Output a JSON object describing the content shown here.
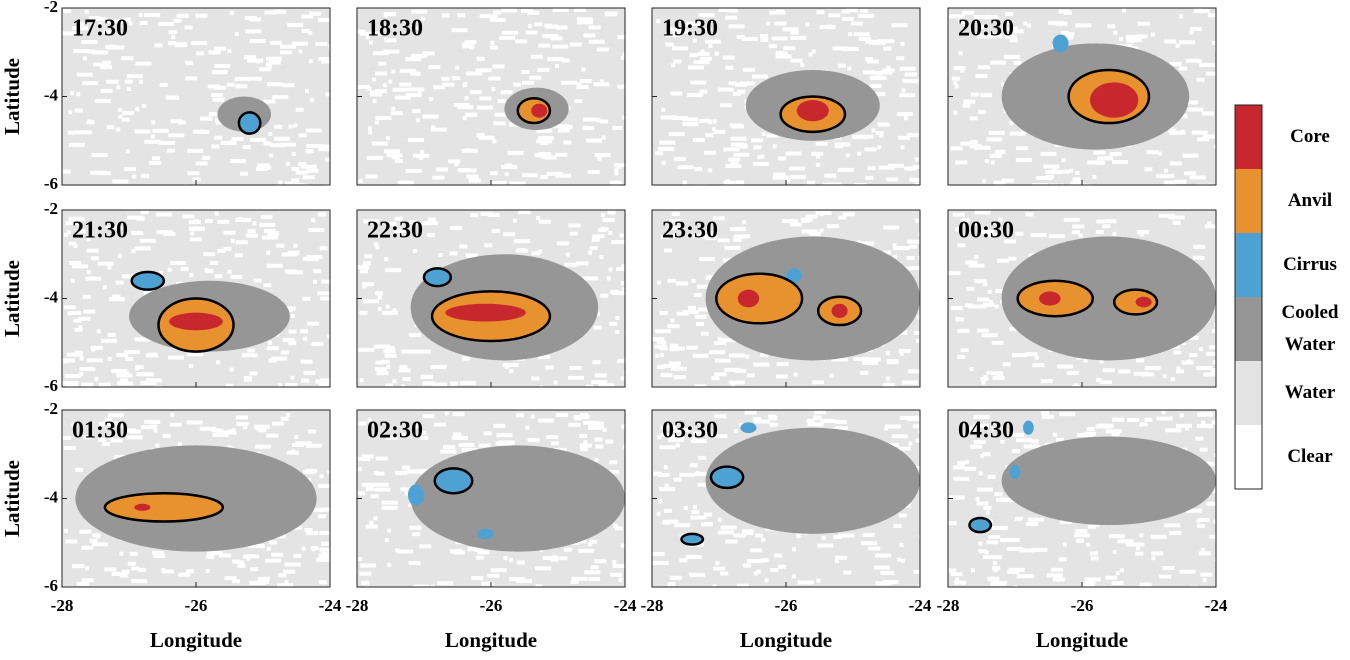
{
  "chart_data": {
    "type": "map-grid",
    "panels": [
      {
        "title": "17:30"
      },
      {
        "title": "18:30"
      },
      {
        "title": "19:30"
      },
      {
        "title": "20:30"
      },
      {
        "title": "21:30"
      },
      {
        "title": "22:30"
      },
      {
        "title": "23:30"
      },
      {
        "title": "00:30"
      },
      {
        "title": "01:30"
      },
      {
        "title": "02:30"
      },
      {
        "title": "03:30"
      },
      {
        "title": "04:30"
      }
    ],
    "xlabel": "Longitude",
    "ylabel": "Latitude",
    "xlim": [
      -28,
      -24
    ],
    "xticks": [
      -28,
      -26,
      -24
    ],
    "ylim": [
      -6,
      -2
    ],
    "yticks": [
      -6,
      -4,
      -2
    ],
    "legend": {
      "categories": [
        "Core",
        "Anvil",
        "Cirrus",
        "Cooled Water",
        "Water",
        "Clear"
      ],
      "colors": [
        "#c8282d",
        "#e8912f",
        "#4ea2d3",
        "#969696",
        "#e4e4e4",
        "#ffffff"
      ]
    }
  }
}
